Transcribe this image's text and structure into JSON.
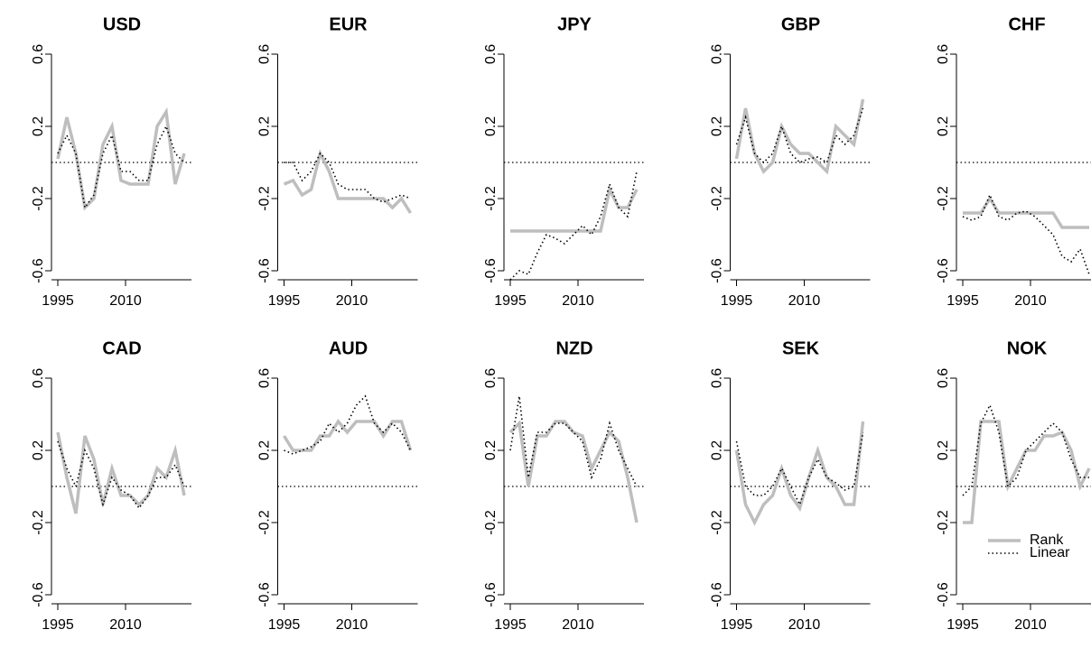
{
  "chart_data": [
    {
      "type": "line",
      "title": "USD",
      "x": [
        1995,
        1997,
        1999,
        2001,
        2003,
        2005,
        2007,
        2009,
        2011,
        2013,
        2015,
        2017,
        2019,
        2021,
        2023
      ],
      "xlim": [
        1993.6,
        2024.6
      ],
      "xticks": [
        1995,
        2010
      ],
      "ylim": [
        -0.65,
        0.65
      ],
      "yticks": [
        -0.6,
        -0.2,
        0.2,
        0.6
      ],
      "hline": 0,
      "series": [
        {
          "color": "#bebebe",
          "style": "solid",
          "values": [
            0.02,
            0.25,
            0.05,
            -0.25,
            -0.2,
            0.1,
            0.2,
            -0.1,
            -0.12,
            -0.12,
            -0.12,
            0.2,
            0.28,
            -0.12,
            0.05
          ]
        },
        {
          "color": "#000000",
          "style": "dotted",
          "values": [
            0.05,
            0.15,
            0.05,
            -0.25,
            -0.18,
            0.05,
            0.15,
            -0.05,
            -0.05,
            -0.1,
            -0.1,
            0.1,
            0.2,
            0.05,
            0.0
          ]
        }
      ]
    },
    {
      "type": "line",
      "title": "EUR",
      "x": [
        1995,
        1997,
        1999,
        2001,
        2003,
        2005,
        2007,
        2009,
        2011,
        2013,
        2015,
        2017,
        2019,
        2021,
        2023
      ],
      "xlim": [
        1993.6,
        2024.6
      ],
      "xticks": [
        1995,
        2010
      ],
      "ylim": [
        -0.65,
        0.65
      ],
      "yticks": [
        -0.6,
        -0.2,
        0.2,
        0.6
      ],
      "hline": 0,
      "series": [
        {
          "color": "#bebebe",
          "style": "solid",
          "values": [
            -0.12,
            -0.1,
            -0.18,
            -0.15,
            0.05,
            -0.05,
            -0.2,
            -0.2,
            -0.2,
            -0.2,
            -0.2,
            -0.2,
            -0.25,
            -0.2,
            -0.28
          ]
        },
        {
          "color": "#000000",
          "style": "dotted",
          "values": [
            0.0,
            0.0,
            -0.1,
            -0.05,
            0.05,
            0.0,
            -0.12,
            -0.15,
            -0.15,
            -0.15,
            -0.2,
            -0.22,
            -0.2,
            -0.18,
            -0.2
          ]
        }
      ]
    },
    {
      "type": "line",
      "title": "JPY",
      "x": [
        1995,
        1997,
        1999,
        2001,
        2003,
        2005,
        2007,
        2009,
        2011,
        2013,
        2015,
        2017,
        2019,
        2021,
        2023
      ],
      "xlim": [
        1993.6,
        2024.6
      ],
      "xticks": [
        1995,
        2010
      ],
      "ylim": [
        -0.65,
        0.65
      ],
      "yticks": [
        -0.6,
        -0.2,
        0.2,
        0.6
      ],
      "hline": 0,
      "series": [
        {
          "color": "#bebebe",
          "style": "solid",
          "values": [
            -0.38,
            -0.38,
            -0.38,
            -0.38,
            -0.38,
            -0.38,
            -0.38,
            -0.38,
            -0.38,
            -0.38,
            -0.38,
            -0.15,
            -0.25,
            -0.25,
            -0.15
          ]
        },
        {
          "color": "#000000",
          "style": "dotted",
          "values": [
            -0.65,
            -0.6,
            -0.62,
            -0.5,
            -0.4,
            -0.42,
            -0.45,
            -0.4,
            -0.35,
            -0.4,
            -0.3,
            -0.12,
            -0.25,
            -0.3,
            -0.05
          ]
        }
      ]
    },
    {
      "type": "line",
      "title": "GBP",
      "x": [
        1995,
        1997,
        1999,
        2001,
        2003,
        2005,
        2007,
        2009,
        2011,
        2013,
        2015,
        2017,
        2019,
        2021,
        2023
      ],
      "xlim": [
        1993.6,
        2024.6
      ],
      "xticks": [
        1995,
        2010
      ],
      "ylim": [
        -0.65,
        0.65
      ],
      "yticks": [
        -0.6,
        -0.2,
        0.2,
        0.6
      ],
      "hline": 0,
      "series": [
        {
          "color": "#bebebe",
          "style": "solid",
          "values": [
            0.02,
            0.3,
            0.05,
            -0.05,
            0.0,
            0.2,
            0.1,
            0.05,
            0.05,
            0.0,
            -0.05,
            0.2,
            0.15,
            0.1,
            0.35
          ]
        },
        {
          "color": "#000000",
          "style": "dotted",
          "values": [
            0.1,
            0.25,
            0.05,
            0.0,
            0.05,
            0.2,
            0.05,
            0.0,
            0.02,
            0.03,
            0.0,
            0.15,
            0.1,
            0.15,
            0.3
          ]
        }
      ]
    },
    {
      "type": "line",
      "title": "CHF",
      "x": [
        1995,
        1997,
        1999,
        2001,
        2003,
        2005,
        2007,
        2009,
        2011,
        2013,
        2015,
        2017,
        2019,
        2021,
        2023
      ],
      "xlim": [
        1993.6,
        2024.6
      ],
      "xticks": [
        1995,
        2010
      ],
      "ylim": [
        -0.65,
        0.65
      ],
      "yticks": [
        -0.6,
        -0.2,
        0.2,
        0.6
      ],
      "hline": 0,
      "series": [
        {
          "color": "#bebebe",
          "style": "solid",
          "values": [
            -0.28,
            -0.28,
            -0.28,
            -0.2,
            -0.28,
            -0.28,
            -0.28,
            -0.28,
            -0.28,
            -0.28,
            -0.28,
            -0.36,
            -0.36,
            -0.36,
            -0.36
          ]
        },
        {
          "color": "#000000",
          "style": "dotted",
          "values": [
            -0.3,
            -0.32,
            -0.3,
            -0.18,
            -0.3,
            -0.32,
            -0.28,
            -0.27,
            -0.3,
            -0.35,
            -0.4,
            -0.52,
            -0.55,
            -0.48,
            -0.62
          ]
        }
      ]
    },
    {
      "type": "line",
      "title": "CAD",
      "x": [
        1995,
        1997,
        1999,
        2001,
        2003,
        2005,
        2007,
        2009,
        2011,
        2013,
        2015,
        2017,
        2019,
        2021,
        2023
      ],
      "xlim": [
        1993.6,
        2024.6
      ],
      "xticks": [
        1995,
        2010
      ],
      "ylim": [
        -0.65,
        0.65
      ],
      "yticks": [
        -0.6,
        -0.2,
        0.2,
        0.6
      ],
      "hline": 0,
      "series": [
        {
          "color": "#bebebe",
          "style": "solid",
          "values": [
            0.3,
            0.05,
            -0.15,
            0.28,
            0.15,
            -0.1,
            0.1,
            -0.05,
            -0.05,
            -0.1,
            -0.05,
            0.1,
            0.05,
            0.2,
            -0.05
          ]
        },
        {
          "color": "#000000",
          "style": "dotted",
          "values": [
            0.25,
            0.1,
            0.0,
            0.2,
            0.1,
            -0.1,
            0.05,
            -0.02,
            -0.05,
            -0.12,
            -0.05,
            0.05,
            0.05,
            0.12,
            0.0
          ]
        }
      ]
    },
    {
      "type": "line",
      "title": "AUD",
      "x": [
        1995,
        1997,
        1999,
        2001,
        2003,
        2005,
        2007,
        2009,
        2011,
        2013,
        2015,
        2017,
        2019,
        2021,
        2023
      ],
      "xlim": [
        1993.6,
        2024.6
      ],
      "xticks": [
        1995,
        2010
      ],
      "ylim": [
        -0.65,
        0.65
      ],
      "yticks": [
        -0.6,
        -0.2,
        0.2,
        0.6
      ],
      "hline": 0,
      "series": [
        {
          "color": "#bebebe",
          "style": "solid",
          "values": [
            0.28,
            0.2,
            0.2,
            0.2,
            0.28,
            0.28,
            0.36,
            0.3,
            0.36,
            0.36,
            0.36,
            0.28,
            0.36,
            0.36,
            0.2
          ]
        },
        {
          "color": "#000000",
          "style": "dotted",
          "values": [
            0.2,
            0.18,
            0.2,
            0.22,
            0.25,
            0.35,
            0.3,
            0.35,
            0.45,
            0.5,
            0.35,
            0.3,
            0.35,
            0.3,
            0.2
          ]
        }
      ]
    },
    {
      "type": "line",
      "title": "NZD",
      "x": [
        1995,
        1997,
        1999,
        2001,
        2003,
        2005,
        2007,
        2009,
        2011,
        2013,
        2015,
        2017,
        2019,
        2021,
        2023
      ],
      "xlim": [
        1993.6,
        2024.6
      ],
      "xticks": [
        1995,
        2010
      ],
      "ylim": [
        -0.65,
        0.65
      ],
      "yticks": [
        -0.6,
        -0.2,
        0.2,
        0.6
      ],
      "hline": 0,
      "series": [
        {
          "color": "#bebebe",
          "style": "solid",
          "values": [
            0.3,
            0.35,
            0.0,
            0.28,
            0.28,
            0.36,
            0.36,
            0.3,
            0.28,
            0.1,
            0.2,
            0.3,
            0.25,
            0.05,
            -0.2
          ]
        },
        {
          "color": "#000000",
          "style": "dotted",
          "values": [
            0.2,
            0.5,
            0.05,
            0.3,
            0.3,
            0.35,
            0.35,
            0.3,
            0.25,
            0.05,
            0.15,
            0.35,
            0.2,
            0.1,
            0.0
          ]
        }
      ]
    },
    {
      "type": "line",
      "title": "SEK",
      "x": [
        1995,
        1997,
        1999,
        2001,
        2003,
        2005,
        2007,
        2009,
        2011,
        2013,
        2015,
        2017,
        2019,
        2021,
        2023
      ],
      "xlim": [
        1993.6,
        2024.6
      ],
      "xticks": [
        1995,
        2010
      ],
      "ylim": [
        -0.65,
        0.65
      ],
      "yticks": [
        -0.6,
        -0.2,
        0.2,
        0.6
      ],
      "hline": 0,
      "series": [
        {
          "color": "#bebebe",
          "style": "solid",
          "values": [
            0.2,
            -0.1,
            -0.2,
            -0.1,
            -0.05,
            0.1,
            -0.05,
            -0.12,
            0.05,
            0.2,
            0.05,
            0.0,
            -0.1,
            -0.1,
            0.36
          ]
        },
        {
          "color": "#000000",
          "style": "dotted",
          "values": [
            0.25,
            0.0,
            -0.05,
            -0.05,
            0.0,
            0.1,
            0.0,
            -0.1,
            0.05,
            0.15,
            0.05,
            0.02,
            -0.02,
            0.0,
            0.3
          ]
        }
      ]
    },
    {
      "type": "line",
      "title": "NOK",
      "x": [
        1995,
        1997,
        1999,
        2001,
        2003,
        2005,
        2007,
        2009,
        2011,
        2013,
        2015,
        2017,
        2019,
        2021,
        2023
      ],
      "xlim": [
        1993.6,
        2024.6
      ],
      "xticks": [
        1995,
        2010
      ],
      "ylim": [
        -0.65,
        0.65
      ],
      "yticks": [
        -0.6,
        -0.2,
        0.2,
        0.6
      ],
      "hline": 0,
      "legend": "bottomright",
      "series": [
        {
          "name": "Rank",
          "color": "#bebebe",
          "style": "solid",
          "values": [
            -0.2,
            -0.2,
            0.36,
            0.36,
            0.36,
            0.0,
            0.1,
            0.2,
            0.2,
            0.28,
            0.28,
            0.3,
            0.2,
            0.0,
            0.1
          ]
        },
        {
          "name": "Linear",
          "color": "#000000",
          "style": "dotted",
          "values": [
            -0.05,
            0.0,
            0.35,
            0.45,
            0.3,
            0.0,
            0.05,
            0.2,
            0.25,
            0.3,
            0.35,
            0.3,
            0.15,
            0.05,
            0.05
          ]
        }
      ]
    }
  ]
}
